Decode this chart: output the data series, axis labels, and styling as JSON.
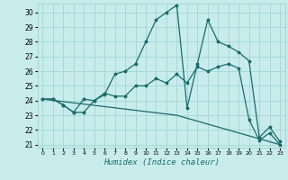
{
  "xlabel": "Humidex (Indice chaleur)",
  "background_color": "#c8ecec",
  "grid_color": "#a8d8d8",
  "line_color": "#1a6b6b",
  "xlim": [
    -0.5,
    23.5
  ],
  "ylim": [
    20.8,
    30.6
  ],
  "xticks": [
    0,
    1,
    2,
    3,
    4,
    5,
    6,
    7,
    8,
    9,
    10,
    11,
    12,
    13,
    14,
    15,
    16,
    17,
    18,
    19,
    20,
    21,
    22,
    23
  ],
  "yticks": [
    21,
    22,
    23,
    24,
    25,
    26,
    27,
    28,
    29,
    30
  ],
  "line1_x": [
    0,
    1,
    2,
    3,
    4,
    5,
    6,
    7,
    8,
    9,
    10,
    11,
    12,
    13,
    14,
    15,
    16,
    17,
    18,
    19,
    20,
    21,
    22,
    23
  ],
  "line1_y": [
    24.1,
    24.1,
    23.7,
    23.2,
    23.2,
    24.0,
    24.4,
    25.8,
    26.0,
    26.5,
    28.0,
    29.5,
    30.0,
    30.5,
    23.5,
    26.5,
    29.5,
    28.0,
    27.7,
    27.3,
    26.7,
    21.5,
    22.2,
    21.2
  ],
  "line2_x": [
    0,
    1,
    2,
    3,
    4,
    5,
    6,
    7,
    8,
    9,
    10,
    11,
    12,
    13,
    14,
    15,
    16,
    17,
    18,
    19,
    20,
    21,
    22,
    23
  ],
  "line2_y": [
    24.1,
    24.1,
    23.7,
    23.2,
    24.1,
    24.0,
    24.5,
    24.3,
    24.3,
    25.0,
    25.0,
    25.5,
    25.2,
    25.8,
    25.2,
    26.3,
    26.0,
    26.3,
    26.5,
    26.2,
    22.7,
    21.3,
    21.8,
    21.0
  ],
  "line3_x": [
    0,
    13,
    23
  ],
  "line3_y": [
    24.1,
    23.0,
    21.0
  ]
}
